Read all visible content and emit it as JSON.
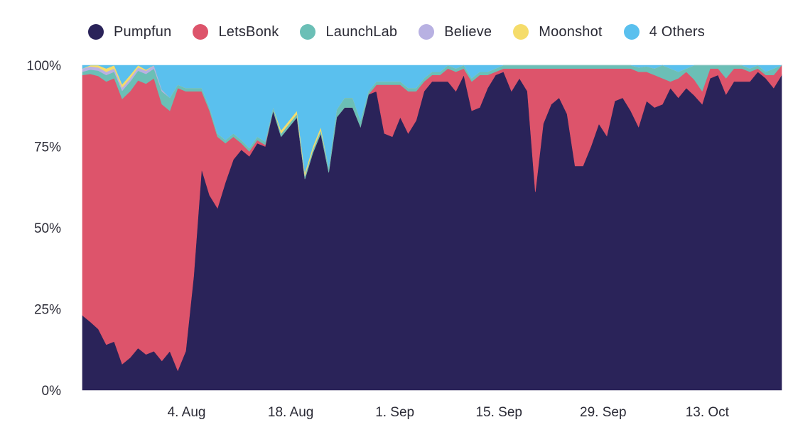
{
  "chart_data": {
    "type": "area",
    "stacked": true,
    "normalized": true,
    "title": "",
    "xlabel": "",
    "ylabel": "",
    "ylim": [
      0,
      100
    ],
    "yticks": [
      {
        "value": 0,
        "label": "0%"
      },
      {
        "value": 25,
        "label": "25%"
      },
      {
        "value": 50,
        "label": "50%"
      },
      {
        "value": 75,
        "label": "75%"
      },
      {
        "value": 100,
        "label": "100%"
      }
    ],
    "x_start_day": 0,
    "x_end_day": 94,
    "xticks": [
      {
        "day": 14,
        "label": "4. Aug"
      },
      {
        "day": 28,
        "label": "18. Aug"
      },
      {
        "day": 42,
        "label": "1. Sep"
      },
      {
        "day": 56,
        "label": "15. Sep"
      },
      {
        "day": 70,
        "label": "29. Sep"
      },
      {
        "day": 84,
        "label": "13. Oct"
      }
    ],
    "legend_position": "top-center",
    "series": [
      {
        "name": "Pumpfun",
        "color": "#2a2359",
        "knots": [
          [
            0,
            23
          ],
          [
            1,
            21
          ],
          [
            2,
            19
          ],
          [
            3,
            14
          ],
          [
            4,
            15
          ],
          [
            5,
            8
          ],
          [
            6,
            10
          ],
          [
            7,
            13
          ],
          [
            8,
            11
          ],
          [
            9,
            12
          ],
          [
            10,
            9
          ],
          [
            11,
            12
          ],
          [
            12,
            6
          ],
          [
            13,
            12
          ],
          [
            14,
            35
          ],
          [
            15,
            68
          ],
          [
            16,
            60
          ],
          [
            17,
            56
          ],
          [
            18,
            64
          ],
          [
            19,
            71
          ],
          [
            20,
            74
          ],
          [
            21,
            72
          ],
          [
            22,
            76
          ],
          [
            23,
            75
          ],
          [
            24,
            86
          ],
          [
            25,
            78
          ],
          [
            26,
            81
          ],
          [
            27,
            84
          ],
          [
            28,
            65
          ],
          [
            29,
            73
          ],
          [
            30,
            79
          ],
          [
            31,
            67
          ],
          [
            32,
            84
          ],
          [
            33,
            87
          ],
          [
            34,
            87
          ],
          [
            35,
            81
          ],
          [
            36,
            91
          ],
          [
            37,
            92
          ],
          [
            38,
            79
          ],
          [
            39,
            78
          ],
          [
            40,
            84
          ],
          [
            41,
            79
          ],
          [
            42,
            83
          ],
          [
            43,
            92
          ],
          [
            44,
            95
          ],
          [
            45,
            95
          ],
          [
            46,
            95
          ],
          [
            47,
            92
          ],
          [
            48,
            97
          ],
          [
            49,
            86
          ],
          [
            50,
            87
          ],
          [
            51,
            93
          ],
          [
            52,
            97
          ],
          [
            53,
            98
          ],
          [
            54,
            92
          ],
          [
            55,
            96
          ],
          [
            56,
            92
          ],
          [
            57,
            61
          ],
          [
            58,
            82
          ],
          [
            59,
            88
          ],
          [
            60,
            90
          ],
          [
            61,
            85
          ],
          [
            62,
            69
          ],
          [
            63,
            69
          ],
          [
            64,
            75
          ],
          [
            65,
            82
          ],
          [
            66,
            79
          ],
          [
            67,
            89
          ],
          [
            68,
            90
          ],
          [
            69,
            86
          ],
          [
            70,
            81
          ],
          [
            71,
            89
          ],
          [
            72,
            87
          ],
          [
            73,
            88
          ],
          [
            74,
            93
          ],
          [
            75,
            90
          ],
          [
            76,
            93
          ],
          [
            77,
            93
          ],
          [
            78,
            88
          ],
          [
            79,
            96
          ],
          [
            80,
            97
          ],
          [
            81,
            91
          ],
          [
            82,
            95
          ],
          [
            83,
            95
          ],
          [
            84,
            95
          ],
          [
            85,
            98
          ],
          [
            86,
            96
          ],
          [
            87,
            93
          ],
          [
            88,
            97
          ]
        ]
      },
      {
        "name": "LetsBonk",
        "color": "#dd546b",
        "knots": [
          [
            0,
            74
          ],
          [
            3,
            81
          ],
          [
            6,
            82
          ],
          [
            9,
            84
          ],
          [
            11,
            74
          ],
          [
            12,
            87
          ],
          [
            13,
            80
          ],
          [
            14,
            57
          ],
          [
            15,
            24
          ],
          [
            16,
            26
          ],
          [
            17,
            22
          ],
          [
            18,
            12
          ],
          [
            19,
            7
          ],
          [
            20,
            2
          ],
          [
            22,
            1
          ],
          [
            24,
            0
          ],
          [
            28,
            0
          ],
          [
            36,
            0
          ],
          [
            37,
            2
          ],
          [
            38,
            15
          ],
          [
            39,
            16
          ],
          [
            40,
            10
          ],
          [
            41,
            13
          ],
          [
            42,
            9
          ],
          [
            43,
            3
          ],
          [
            44,
            2
          ],
          [
            45,
            2
          ],
          [
            46,
            4
          ],
          [
            47,
            6
          ],
          [
            48,
            2
          ],
          [
            49,
            9
          ],
          [
            50,
            10
          ],
          [
            51,
            4
          ],
          [
            52,
            1
          ],
          [
            53,
            1
          ],
          [
            54,
            7
          ],
          [
            55,
            3
          ],
          [
            56,
            7
          ],
          [
            57,
            38
          ],
          [
            58,
            17
          ],
          [
            59,
            11
          ],
          [
            60,
            9
          ],
          [
            61,
            14
          ],
          [
            62,
            30
          ],
          [
            63,
            30
          ],
          [
            64,
            24
          ],
          [
            65,
            17
          ],
          [
            66,
            21
          ],
          [
            67,
            10
          ],
          [
            68,
            9
          ],
          [
            69,
            13
          ],
          [
            70,
            17
          ],
          [
            71,
            9
          ],
          [
            72,
            10
          ],
          [
            73,
            8
          ],
          [
            74,
            2
          ],
          [
            75,
            6
          ],
          [
            76,
            5
          ],
          [
            77,
            5
          ],
          [
            78,
            4
          ],
          [
            79,
            3
          ],
          [
            80,
            2
          ],
          [
            81,
            5
          ],
          [
            82,
            4
          ],
          [
            83,
            4
          ],
          [
            84,
            3
          ],
          [
            85,
            1
          ],
          [
            86,
            1
          ],
          [
            87,
            4
          ],
          [
            88,
            3
          ]
        ]
      },
      {
        "name": "LaunchLab",
        "color": "#6bbfb6",
        "knots": [
          [
            0,
            1
          ],
          [
            3,
            2
          ],
          [
            4,
            2
          ],
          [
            6,
            3
          ],
          [
            9,
            3
          ],
          [
            10,
            4
          ],
          [
            11,
            4
          ],
          [
            12,
            1
          ],
          [
            14,
            1
          ],
          [
            20,
            1
          ],
          [
            30,
            1
          ],
          [
            33,
            3
          ],
          [
            34,
            3
          ],
          [
            36,
            1
          ],
          [
            38,
            1
          ],
          [
            45,
            1
          ],
          [
            50,
            1
          ],
          [
            60,
            1
          ],
          [
            69,
            1
          ],
          [
            72,
            2
          ],
          [
            73,
            4
          ],
          [
            74,
            4
          ],
          [
            75,
            2
          ],
          [
            76,
            1
          ],
          [
            78,
            8
          ],
          [
            79,
            1
          ],
          [
            80,
            1
          ],
          [
            81,
            4
          ],
          [
            82,
            1
          ],
          [
            84,
            1
          ],
          [
            85,
            1
          ],
          [
            86,
            1
          ],
          [
            87,
            2
          ],
          [
            88,
            0
          ]
        ]
      },
      {
        "name": "Believe",
        "color": "#b8b1e2",
        "knots": [
          [
            0,
            1
          ],
          [
            2,
            1
          ],
          [
            4,
            1
          ],
          [
            6,
            1
          ],
          [
            8,
            1
          ],
          [
            9,
            1
          ],
          [
            11,
            0
          ],
          [
            88,
            0
          ]
        ]
      },
      {
        "name": "Moonshot",
        "color": "#f5dc6a",
        "knots": [
          [
            0,
            0
          ],
          [
            3,
            1
          ],
          [
            6,
            1
          ],
          [
            9,
            0
          ],
          [
            24,
            0
          ],
          [
            25,
            1
          ],
          [
            30,
            1
          ],
          [
            31,
            0
          ],
          [
            88,
            0
          ]
        ]
      },
      {
        "name": "4 Others",
        "color": "#5ac0ee"
      }
    ]
  }
}
